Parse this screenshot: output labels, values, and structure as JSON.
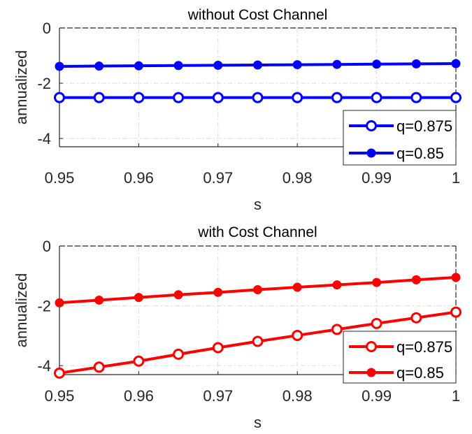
{
  "chart_data": [
    {
      "type": "line",
      "title": "without Cost Channel",
      "xlabel": "s",
      "ylabel": "annualized",
      "xlim": [
        0.95,
        1.0
      ],
      "ylim": [
        -4.3,
        0
      ],
      "xticks": [
        "0.95",
        "0.96",
        "0.97",
        "0.98",
        "0.99",
        "1"
      ],
      "yticks": [
        "0",
        "-2",
        "-4"
      ],
      "grid": true,
      "legend_position": "bottom-right",
      "color": "#0000ff",
      "x": [
        0.95,
        0.955,
        0.96,
        0.965,
        0.97,
        0.975,
        0.98,
        0.985,
        0.99,
        0.995,
        1.0
      ],
      "series": [
        {
          "name": "q=0.875",
          "marker": "open-circle",
          "values": [
            -2.52,
            -2.52,
            -2.52,
            -2.52,
            -2.52,
            -2.52,
            -2.52,
            -2.52,
            -2.52,
            -2.52,
            -2.52
          ]
        },
        {
          "name": "q=0.85",
          "marker": "filled-circle",
          "values": [
            -1.39,
            -1.38,
            -1.37,
            -1.36,
            -1.35,
            -1.34,
            -1.33,
            -1.32,
            -1.31,
            -1.3,
            -1.29
          ]
        }
      ]
    },
    {
      "type": "line",
      "title": "with Cost Channel",
      "xlabel": "s",
      "ylabel": "annualized",
      "xlim": [
        0.95,
        1.0
      ],
      "ylim": [
        -4.3,
        0
      ],
      "xticks": [
        "0.95",
        "0.96",
        "0.97",
        "0.98",
        "0.99",
        "1"
      ],
      "yticks": [
        "0",
        "-2",
        "-4"
      ],
      "grid": true,
      "legend_position": "bottom-right",
      "color": "#ff0000",
      "x": [
        0.95,
        0.955,
        0.96,
        0.965,
        0.97,
        0.975,
        0.98,
        0.985,
        0.99,
        0.995,
        1.0
      ],
      "series": [
        {
          "name": "q=0.875",
          "marker": "open-circle",
          "values": [
            -4.25,
            -4.05,
            -3.85,
            -3.62,
            -3.4,
            -3.19,
            -2.99,
            -2.79,
            -2.59,
            -2.4,
            -2.21
          ]
        },
        {
          "name": "q=0.85",
          "marker": "filled-circle",
          "values": [
            -1.9,
            -1.81,
            -1.72,
            -1.63,
            -1.55,
            -1.46,
            -1.38,
            -1.3,
            -1.22,
            -1.13,
            -1.05
          ]
        }
      ]
    }
  ]
}
